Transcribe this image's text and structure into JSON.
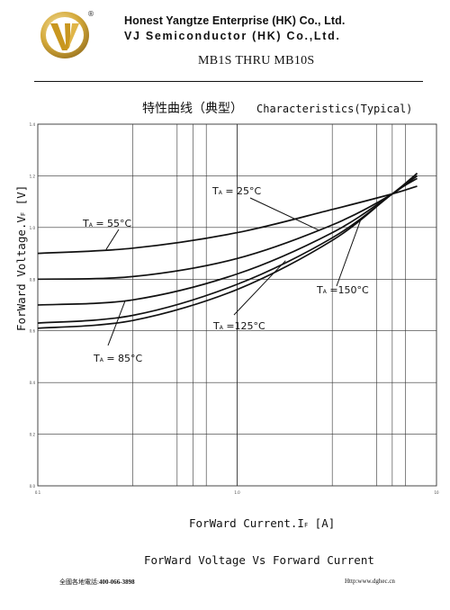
{
  "header": {
    "company_line1": "Honest Yangtze Enterprise (HK) Co., Ltd.",
    "company_line2": "VJ Semiconductor (HK) Co.,Ltd.",
    "part_range": "MB1S THRU MB10S",
    "registered_mark": "®",
    "logo_icon": "vj-logo-icon"
  },
  "section": {
    "title_cn": "特性曲线（典型）",
    "title_en": "Characteristics(Typical)"
  },
  "chart_data": {
    "type": "line",
    "title": "ForWard Voltage Vs Forward Current",
    "xlabel": "ForWard Current.IF [A]",
    "ylabel": "ForWard Voltage.VF [V]",
    "x_scale": "log",
    "xlim": [
      0.1,
      10
    ],
    "ylim": [
      0,
      1.4
    ],
    "x_ticks": [
      "0.1",
      "1.0",
      "10"
    ],
    "y_ticks": [
      "0.0",
      "0.2",
      "0.4",
      "0.6",
      "0.8",
      "1.0",
      "1.2",
      "1.4"
    ],
    "grid": true,
    "series": [
      {
        "name": "TA = 55°C",
        "x": [
          0.1,
          0.3,
          1.0,
          3.0,
          6.0,
          8.0
        ],
        "y": [
          0.9,
          0.92,
          0.98,
          1.07,
          1.13,
          1.16
        ]
      },
      {
        "name": "TA = 25°C",
        "x": [
          0.1,
          0.3,
          1.0,
          3.0,
          6.0,
          8.0
        ],
        "y": [
          0.8,
          0.81,
          0.88,
          1.01,
          1.13,
          1.21
        ]
      },
      {
        "name": "TA = 85°C",
        "x": [
          0.1,
          0.3,
          1.0,
          3.0,
          6.0,
          8.0
        ],
        "y": [
          0.7,
          0.72,
          0.82,
          0.98,
          1.13,
          1.2
        ]
      },
      {
        "name": "TA = 125°C",
        "x": [
          0.1,
          0.3,
          1.0,
          3.0,
          6.0,
          8.0
        ],
        "y": [
          0.63,
          0.66,
          0.78,
          0.96,
          1.13,
          1.21
        ]
      },
      {
        "name": "TA = 150°C",
        "x": [
          0.1,
          0.3,
          1.0,
          3.0,
          6.0,
          8.0
        ],
        "y": [
          0.61,
          0.64,
          0.76,
          0.95,
          1.13,
          1.19
        ]
      }
    ]
  },
  "xlabel_parts": {
    "main": "ForWard Current.I",
    "sub": "F",
    "unit": " [A]"
  },
  "ylabel_parts": {
    "main": "ForWard Voltage.V",
    "sub": "F",
    "unit": " [V]"
  },
  "annotations": [
    {
      "prefix": "T",
      "sub": "A",
      "rest": " = 55°C"
    },
    {
      "prefix": "T",
      "sub": "A",
      "rest": " = 25°C"
    },
    {
      "prefix": "T",
      "sub": "A",
      "rest": " = 85°C"
    },
    {
      "prefix": "T",
      "sub": "A",
      "rest": " =125°C"
    },
    {
      "prefix": "T",
      "sub": "A",
      "rest": " =150°C"
    }
  ],
  "footer": {
    "hotline_label": "全國各地電話:",
    "hotline_number": "400-066-3898",
    "website": "Http:www.dghec.cn"
  },
  "colors": {
    "line": "#111111",
    "grid": "#333333",
    "logo_gold": "#d4a93a"
  }
}
